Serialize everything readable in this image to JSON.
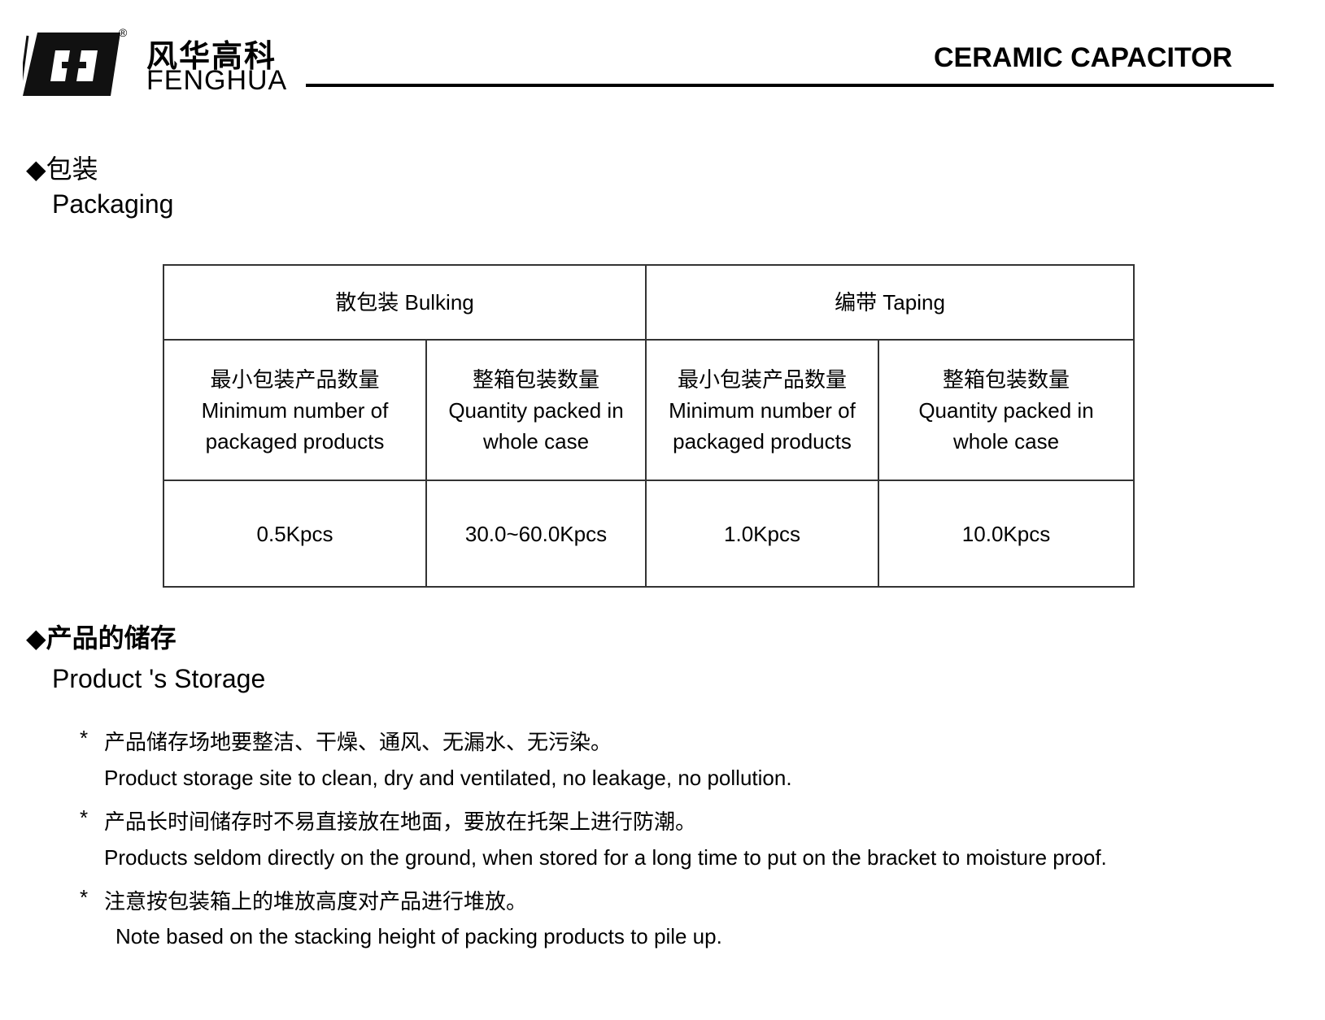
{
  "header": {
    "logo_cn": "风华高科",
    "logo_en": "FENGHUA",
    "logo_registered": "®",
    "title": "CERAMIC CAPACITOR"
  },
  "packaging": {
    "heading_cn": "◆包装",
    "heading_en": "Packaging",
    "table": {
      "group_headers": [
        "散包装 Bulking",
        "编带 Taping"
      ],
      "columns": [
        {
          "cn": "最小包装产品数量",
          "en1": "Minimum number of",
          "en2": "packaged products"
        },
        {
          "cn": "整箱包装数量",
          "en1": "Quantity packed in",
          "en2": "whole case"
        },
        {
          "cn": "最小包装产品数量",
          "en1": "Minimum number of",
          "en2": "packaged products"
        },
        {
          "cn": "整箱包装数量",
          "en1": "Quantity packed in",
          "en2": "whole case"
        }
      ],
      "values": [
        "0.5Kpcs",
        "30.0~60.0Kpcs",
        "1.0Kpcs",
        "10.0Kpcs"
      ]
    }
  },
  "storage": {
    "heading_cn": "◆产品的储存",
    "heading_en": "Product 's Storage",
    "items": [
      {
        "marker": "*",
        "cn": "产品储存场地要整洁、干燥、通风、无漏水、无污染。",
        "en": "Product storage site to clean, dry and ventilated, no leakage, no pollution."
      },
      {
        "marker": "*",
        "cn": "产品长时间储存时不易直接放在地面，要放在托架上进行防潮。",
        "en": "Products seldom directly on the ground, when stored for a long time to put on the bracket to moisture proof."
      },
      {
        "marker": "*",
        "cn": "注意按包装箱上的堆放高度对产品进行堆放。",
        "en": "Note based on the stacking height of packing products to pile up."
      }
    ]
  }
}
